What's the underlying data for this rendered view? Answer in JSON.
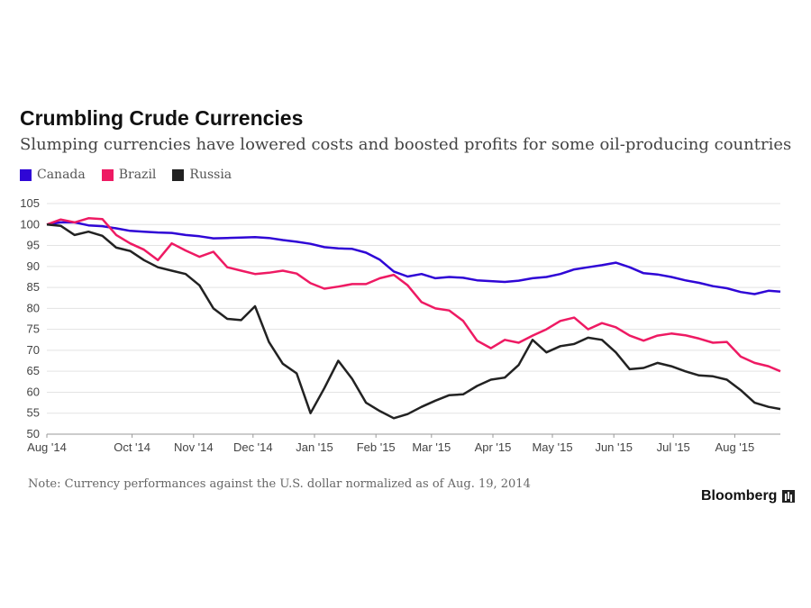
{
  "title": "Crumbling Crude Currencies",
  "subtitle": "Slumping currencies have lowered costs and boosted profits for some oil-producing countries",
  "note": "Note: Currency performances against the U.S. dollar normalized as of Aug. 19, 2014",
  "brand": "Bloomberg",
  "chart_data": {
    "type": "line",
    "grid": true,
    "legend_position": "top-left",
    "ylim": [
      50,
      105
    ],
    "yticks": [
      105,
      100,
      95,
      90,
      85,
      80,
      75,
      70,
      65,
      60,
      55,
      50
    ],
    "xlim": [
      "2014-08-19",
      "2015-08-24"
    ],
    "xticks": [
      {
        "label": "Aug '14",
        "date": "2014-08-19"
      },
      {
        "label": "Oct '14",
        "date": "2014-10-01"
      },
      {
        "label": "Nov '14",
        "date": "2014-11-01"
      },
      {
        "label": "Dec '14",
        "date": "2014-12-01"
      },
      {
        "label": "Jan '15",
        "date": "2015-01-01"
      },
      {
        "label": "Feb '15",
        "date": "2015-02-01"
      },
      {
        "label": "Mar '15",
        "date": "2015-03-01"
      },
      {
        "label": "Apr '15",
        "date": "2015-04-01"
      },
      {
        "label": "May '15",
        "date": "2015-05-01"
      },
      {
        "label": "Jun '15",
        "date": "2015-06-01"
      },
      {
        "label": "Jul '15",
        "date": "2015-07-01"
      },
      {
        "label": "Aug '15",
        "date": "2015-08-01"
      }
    ],
    "series": [
      {
        "name": "Canada",
        "color": "#2f06d6",
        "points": [
          [
            "2014-08-19",
            100
          ],
          [
            "2014-08-26",
            100.5
          ],
          [
            "2014-09-02",
            100.5
          ],
          [
            "2014-09-09",
            99.8
          ],
          [
            "2014-09-16",
            99.6
          ],
          [
            "2014-09-23",
            99.1
          ],
          [
            "2014-09-30",
            98.5
          ],
          [
            "2014-10-07",
            98.3
          ],
          [
            "2014-10-14",
            98.1
          ],
          [
            "2014-10-21",
            98.0
          ],
          [
            "2014-10-28",
            97.5
          ],
          [
            "2014-11-04",
            97.2
          ],
          [
            "2014-11-11",
            96.7
          ],
          [
            "2014-11-18",
            96.8
          ],
          [
            "2014-11-25",
            96.9
          ],
          [
            "2014-12-02",
            97.0
          ],
          [
            "2014-12-09",
            96.8
          ],
          [
            "2014-12-16",
            96.3
          ],
          [
            "2014-12-23",
            95.9
          ],
          [
            "2014-12-30",
            95.4
          ],
          [
            "2015-01-06",
            94.6
          ],
          [
            "2015-01-13",
            94.3
          ],
          [
            "2015-01-20",
            94.2
          ],
          [
            "2015-01-27",
            93.3
          ],
          [
            "2015-02-03",
            91.6
          ],
          [
            "2015-02-10",
            88.8
          ],
          [
            "2015-02-17",
            87.6
          ],
          [
            "2015-02-24",
            88.2
          ],
          [
            "2015-03-03",
            87.2
          ],
          [
            "2015-03-10",
            87.5
          ],
          [
            "2015-03-17",
            87.3
          ],
          [
            "2015-03-24",
            86.7
          ],
          [
            "2015-03-31",
            86.5
          ],
          [
            "2015-04-07",
            86.3
          ],
          [
            "2015-04-14",
            86.6
          ],
          [
            "2015-04-21",
            87.2
          ],
          [
            "2015-04-28",
            87.5
          ],
          [
            "2015-05-05",
            88.2
          ],
          [
            "2015-05-12",
            89.3
          ],
          [
            "2015-05-19",
            89.8
          ],
          [
            "2015-05-26",
            90.3
          ],
          [
            "2015-06-02",
            90.9
          ],
          [
            "2015-06-09",
            89.8
          ],
          [
            "2015-06-16",
            88.4
          ],
          [
            "2015-06-23",
            88.1
          ],
          [
            "2015-06-30",
            87.5
          ],
          [
            "2015-07-07",
            86.7
          ],
          [
            "2015-07-14",
            86.1
          ],
          [
            "2015-07-21",
            85.3
          ],
          [
            "2015-07-28",
            84.8
          ],
          [
            "2015-08-04",
            83.9
          ],
          [
            "2015-08-11",
            83.4
          ],
          [
            "2015-08-18",
            84.2
          ],
          [
            "2015-08-24",
            84.0
          ]
        ]
      },
      {
        "name": "Brazil",
        "color": "#ee1a63",
        "points": [
          [
            "2014-08-19",
            100
          ],
          [
            "2014-08-26",
            101.2
          ],
          [
            "2014-09-02",
            100.5
          ],
          [
            "2014-09-09",
            101.5
          ],
          [
            "2014-09-16",
            101.3
          ],
          [
            "2014-09-23",
            97.5
          ],
          [
            "2014-09-30",
            95.5
          ],
          [
            "2014-10-07",
            94.0
          ],
          [
            "2014-10-14",
            91.5
          ],
          [
            "2014-10-21",
            95.5
          ],
          [
            "2014-10-28",
            93.8
          ],
          [
            "2014-11-04",
            92.3
          ],
          [
            "2014-11-11",
            93.5
          ],
          [
            "2014-11-18",
            89.8
          ],
          [
            "2014-11-25",
            89.0
          ],
          [
            "2014-12-02",
            88.2
          ],
          [
            "2014-12-09",
            88.5
          ],
          [
            "2014-12-16",
            89.0
          ],
          [
            "2014-12-23",
            88.3
          ],
          [
            "2014-12-30",
            86.0
          ],
          [
            "2015-01-06",
            84.7
          ],
          [
            "2015-01-13",
            85.2
          ],
          [
            "2015-01-20",
            85.8
          ],
          [
            "2015-01-27",
            85.8
          ],
          [
            "2015-02-03",
            87.2
          ],
          [
            "2015-02-10",
            88.0
          ],
          [
            "2015-02-17",
            85.5
          ],
          [
            "2015-02-24",
            81.5
          ],
          [
            "2015-03-03",
            80.0
          ],
          [
            "2015-03-10",
            79.5
          ],
          [
            "2015-03-17",
            77.0
          ],
          [
            "2015-03-24",
            72.3
          ],
          [
            "2015-03-31",
            70.5
          ],
          [
            "2015-04-07",
            72.5
          ],
          [
            "2015-04-14",
            71.8
          ],
          [
            "2015-04-21",
            73.5
          ],
          [
            "2015-04-28",
            75.0
          ],
          [
            "2015-05-05",
            77.0
          ],
          [
            "2015-05-12",
            77.8
          ],
          [
            "2015-05-19",
            75.0
          ],
          [
            "2015-05-26",
            76.5
          ],
          [
            "2015-06-02",
            75.5
          ],
          [
            "2015-06-09",
            73.5
          ],
          [
            "2015-06-16",
            72.3
          ],
          [
            "2015-06-23",
            73.5
          ],
          [
            "2015-06-30",
            74.0
          ],
          [
            "2015-07-07",
            73.6
          ],
          [
            "2015-07-14",
            72.8
          ],
          [
            "2015-07-21",
            71.8
          ],
          [
            "2015-07-28",
            72.0
          ],
          [
            "2015-08-04",
            68.5
          ],
          [
            "2015-08-11",
            67.0
          ],
          [
            "2015-08-18",
            66.2
          ],
          [
            "2015-08-24",
            65.0
          ]
        ]
      },
      {
        "name": "Russia",
        "color": "#222222",
        "points": [
          [
            "2014-08-19",
            100
          ],
          [
            "2014-08-26",
            99.7
          ],
          [
            "2014-09-02",
            97.5
          ],
          [
            "2014-09-09",
            98.3
          ],
          [
            "2014-09-16",
            97.3
          ],
          [
            "2014-09-23",
            94.5
          ],
          [
            "2014-09-30",
            93.7
          ],
          [
            "2014-10-07",
            91.5
          ],
          [
            "2014-10-14",
            89.8
          ],
          [
            "2014-10-21",
            89.0
          ],
          [
            "2014-10-28",
            88.2
          ],
          [
            "2014-11-04",
            85.5
          ],
          [
            "2014-11-11",
            80.0
          ],
          [
            "2014-11-18",
            77.5
          ],
          [
            "2014-11-25",
            77.2
          ],
          [
            "2014-12-02",
            80.5
          ],
          [
            "2014-12-09",
            72.0
          ],
          [
            "2014-12-16",
            66.8
          ],
          [
            "2014-12-23",
            64.5
          ],
          [
            "2014-12-30",
            55.0
          ],
          [
            "2015-01-06",
            61.0
          ],
          [
            "2015-01-13",
            67.5
          ],
          [
            "2015-01-20",
            63.2
          ],
          [
            "2015-01-27",
            57.5
          ],
          [
            "2015-02-03",
            55.5
          ],
          [
            "2015-02-10",
            53.8
          ],
          [
            "2015-02-17",
            54.8
          ],
          [
            "2015-02-24",
            56.5
          ],
          [
            "2015-03-03",
            58.0
          ],
          [
            "2015-03-10",
            59.3
          ],
          [
            "2015-03-17",
            59.5
          ],
          [
            "2015-03-24",
            61.5
          ],
          [
            "2015-03-31",
            63.0
          ],
          [
            "2015-04-07",
            63.5
          ],
          [
            "2015-04-14",
            66.5
          ],
          [
            "2015-04-21",
            72.5
          ],
          [
            "2015-04-28",
            69.5
          ],
          [
            "2015-05-05",
            71.0
          ],
          [
            "2015-05-12",
            71.5
          ],
          [
            "2015-05-19",
            73.0
          ],
          [
            "2015-05-26",
            72.5
          ],
          [
            "2015-06-02",
            69.5
          ],
          [
            "2015-06-09",
            65.5
          ],
          [
            "2015-06-16",
            65.8
          ],
          [
            "2015-06-23",
            67.0
          ],
          [
            "2015-06-30",
            66.2
          ],
          [
            "2015-07-07",
            65.0
          ],
          [
            "2015-07-14",
            64.0
          ],
          [
            "2015-07-21",
            63.8
          ],
          [
            "2015-07-28",
            63.0
          ],
          [
            "2015-08-04",
            60.5
          ],
          [
            "2015-08-11",
            57.5
          ],
          [
            "2015-08-18",
            56.5
          ],
          [
            "2015-08-24",
            56.0
          ]
        ]
      }
    ]
  }
}
